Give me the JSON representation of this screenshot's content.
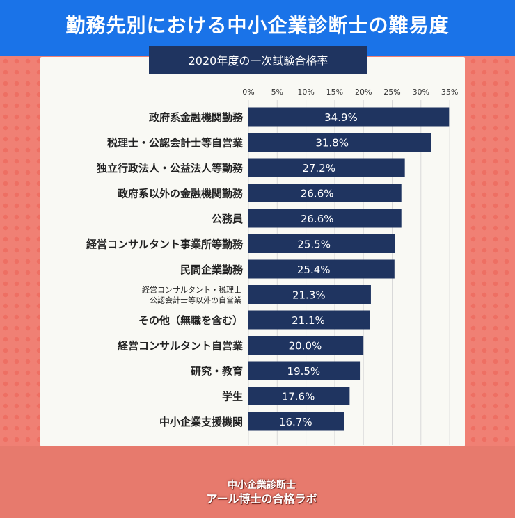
{
  "header": {
    "title": "勤務先別における中小企業診断士の難易度"
  },
  "subtitle": "2020年度の一次試験合格率",
  "footer": {
    "brand_line1": "中小企業診断士",
    "brand_line2": "アール博士の合格ラボ"
  },
  "colors": {
    "bar": "#1f3460",
    "header": "#1a73e8",
    "grid": "#d9d9d9",
    "background": "#f08074"
  },
  "chart_data": {
    "type": "bar",
    "orientation": "horizontal",
    "title": "2020年度の一次試験合格率",
    "xlim": [
      0,
      35
    ],
    "ticks": [
      "0%",
      "5%",
      "10%",
      "15%",
      "20%",
      "25%",
      "30%",
      "35%"
    ],
    "tick_values": [
      0,
      5,
      10,
      15,
      20,
      25,
      30,
      35
    ],
    "grid": true,
    "categories": [
      "政府系金融機関勤務",
      "税理士・公認会計士等自営業",
      "独立行政法人・公益法人等勤務",
      "政府系以外の金融機関勤務",
      "公務員",
      "経営コンサルタント事業所等勤務",
      "民間企業勤務",
      "経営コンサルタント・税理士\n公認会計士等以外の自営業",
      "その他（無職を含む）",
      "経営コンサルタント自営業",
      "研究・教育",
      "学生",
      "中小企業支援機関"
    ],
    "values": [
      34.9,
      31.8,
      27.2,
      26.6,
      26.6,
      25.5,
      25.4,
      21.3,
      21.1,
      20.0,
      19.5,
      17.6,
      16.7
    ],
    "labels": [
      "34.9%",
      "31.8%",
      "27.2%",
      "26.6%",
      "26.6%",
      "25.5%",
      "25.4%",
      "21.3%",
      "21.1%",
      "20.0%",
      "19.5%",
      "17.6%",
      "16.7%"
    ]
  }
}
